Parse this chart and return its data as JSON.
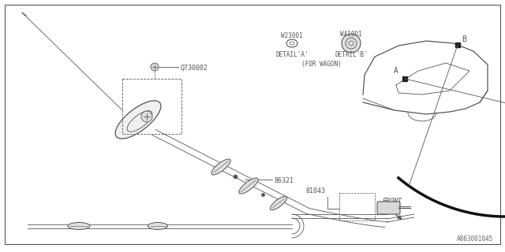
{
  "bg_color": "#ffffff",
  "border_color": "#555555",
  "line_color": "#555555",
  "lw_thin": 0.6,
  "lw_med": 0.9,
  "lw_thick": 2.5,
  "label_fontsize": 6.0,
  "small_fontsize": 5.5,
  "border": [
    0.01,
    0.02,
    0.99,
    0.97
  ]
}
